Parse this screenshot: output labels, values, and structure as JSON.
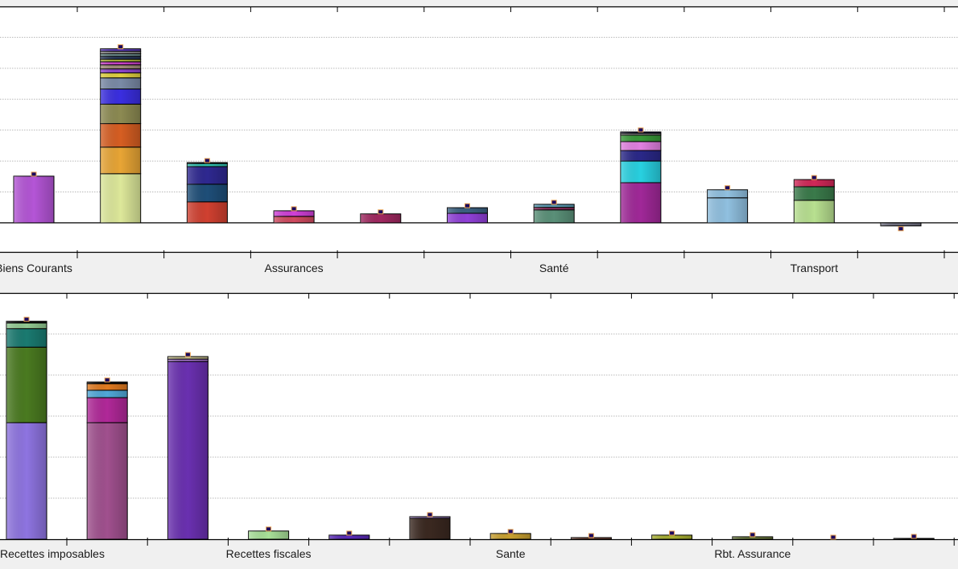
{
  "chart_data": [
    {
      "type": "bar",
      "stacked": true,
      "grid": true,
      "ylim": [
        -0.94,
        7.0
      ],
      "gridlines": [
        1,
        2,
        3,
        4,
        5,
        6
      ],
      "group_labels": [
        "Biens Courants",
        "",
        "",
        "Assurances",
        "",
        "",
        "Santé",
        "",
        "",
        "Transport",
        ""
      ],
      "bars": [
        {
          "segments": [
            {
              "value": 1.51,
              "color": "#b455d6"
            }
          ]
        },
        {
          "segments": [
            {
              "value": 1.59,
              "color": "#dde89a"
            },
            {
              "value": 0.86,
              "color": "#e8a535"
            },
            {
              "value": 0.76,
              "color": "#d65e22"
            },
            {
              "value": 0.63,
              "color": "#8c8a52"
            },
            {
              "value": 0.49,
              "color": "#3a2ee0"
            },
            {
              "value": 0.36,
              "color": "#7a8aa6"
            },
            {
              "value": 0.16,
              "color": "#e0d040"
            },
            {
              "value": 0.13,
              "color": "#8a44c8"
            },
            {
              "value": 0.13,
              "color": "#a08a7a"
            },
            {
              "value": 0.1,
              "color": "#c840c8"
            },
            {
              "value": 0.08,
              "color": "#b8c040"
            },
            {
              "value": 0.1,
              "color": "#2a3a5a"
            },
            {
              "value": 0.08,
              "color": "#7aa0a0"
            },
            {
              "value": 0.08,
              "color": "#909090"
            },
            {
              "value": 0.08,
              "color": "#6040c0"
            }
          ]
        },
        {
          "segments": [
            {
              "value": 0.68,
              "color": "#d04030"
            },
            {
              "value": 0.57,
              "color": "#1e4e78"
            },
            {
              "value": 0.57,
              "color": "#2e2890"
            },
            {
              "value": 0.1,
              "color": "#30c0b0"
            },
            {
              "value": 0.03,
              "color": "#202020"
            }
          ]
        },
        {
          "segments": [
            {
              "value": 0.21,
              "color": "#d04a60"
            },
            {
              "value": 0.18,
              "color": "#d040d8"
            }
          ]
        },
        {
          "segments": [
            {
              "value": 0.29,
              "color": "#a02860"
            }
          ]
        },
        {
          "segments": [
            {
              "value": 0.31,
              "color": "#9040d8"
            },
            {
              "value": 0.18,
              "color": "#3a6080"
            }
          ]
        },
        {
          "segments": [
            {
              "value": 0.42,
              "color": "#5a9078"
            },
            {
              "value": 0.08,
              "color": "#903060"
            },
            {
              "value": 0.1,
              "color": "#5a98b0"
            }
          ]
        },
        {
          "segments": [
            {
              "value": 1.3,
              "color": "#a02898"
            },
            {
              "value": 0.7,
              "color": "#28d0e0"
            },
            {
              "value": 0.34,
              "color": "#2a2888"
            },
            {
              "value": 0.29,
              "color": "#e080e0"
            },
            {
              "value": 0.21,
              "color": "#389838"
            },
            {
              "value": 0.05,
              "color": "#d0d0d0"
            },
            {
              "value": 0.05,
              "color": "#101030"
            }
          ]
        },
        {
          "segments": [
            {
              "value": 0.81,
              "color": "#90c0e0"
            },
            {
              "value": 0.26,
              "color": "#90c0e0"
            }
          ]
        },
        {
          "segments": [
            {
              "value": 0.73,
              "color": "#b8e090"
            },
            {
              "value": 0.44,
              "color": "#3a7a4a"
            },
            {
              "value": 0.23,
              "color": "#d02858"
            }
          ]
        },
        {
          "segments": [
            {
              "value": -0.1,
              "color": "#707080"
            }
          ]
        }
      ]
    },
    {
      "type": "bar",
      "stacked": true,
      "grid": true,
      "ylim": [
        0,
        6.0
      ],
      "gridlines": [
        1,
        2,
        3,
        4,
        5
      ],
      "group_labels": [
        "Recettes imposables",
        "",
        "",
        "Recettes fiscales",
        "",
        "",
        "Sante",
        "",
        "",
        "Rbt. Assurance",
        "",
        ""
      ],
      "bars": [
        {
          "segments": [
            {
              "value": 2.84,
              "color": "#8e74e0"
            },
            {
              "value": 1.84,
              "color": "#4a7a20"
            },
            {
              "value": 0.45,
              "color": "#1a7a70"
            },
            {
              "value": 0.14,
              "color": "#90c890"
            },
            {
              "value": 0.04,
              "color": "#101010"
            }
          ]
        },
        {
          "segments": [
            {
              "value": 2.84,
              "color": "#a0508e"
            },
            {
              "value": 0.61,
              "color": "#b02898"
            },
            {
              "value": 0.18,
              "color": "#50a8d8"
            },
            {
              "value": 0.16,
              "color": "#e07a20"
            },
            {
              "value": 0.04,
              "color": "#101010"
            }
          ]
        },
        {
          "segments": [
            {
              "value": 4.33,
              "color": "#6a30b0"
            },
            {
              "value": 0.06,
              "color": "#a070c8"
            },
            {
              "value": 0.06,
              "color": "#c8c090"
            }
          ]
        },
        {
          "segments": [
            {
              "value": 0.2,
              "color": "#a8e098"
            }
          ]
        },
        {
          "segments": [
            {
              "value": 0.1,
              "color": "#5a2ab8"
            }
          ]
        },
        {
          "segments": [
            {
              "value": 0.51,
              "color": "#3a2820"
            },
            {
              "value": 0.04,
              "color": "#a080c8"
            }
          ]
        },
        {
          "segments": [
            {
              "value": 0.14,
              "color": "#c8a030"
            }
          ]
        },
        {
          "segments": [
            {
              "value": 0.04,
              "color": "#905848"
            }
          ]
        },
        {
          "segments": [
            {
              "value": 0.1,
              "color": "#a8b030"
            }
          ]
        },
        {
          "segments": [
            {
              "value": 0.06,
              "color": "#708040"
            }
          ]
        },
        {
          "segments": []
        },
        {
          "segments": [
            {
              "value": 0.02,
              "color": "#202020"
            }
          ]
        }
      ]
    }
  ]
}
